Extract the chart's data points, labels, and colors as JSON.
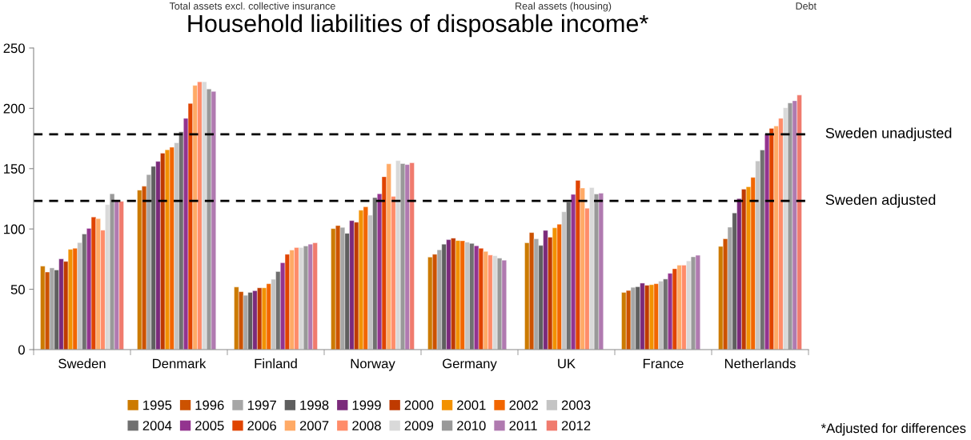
{
  "chart_data": {
    "type": "bar",
    "title": "Household liabilities of disposable income*",
    "categories": [
      "Sweden",
      "Denmark",
      "Finland",
      "Norway",
      "Germany",
      "UK",
      "France",
      "Netherlands"
    ],
    "ylim": [
      0,
      250
    ],
    "yticks": [
      0,
      50,
      100,
      150,
      200,
      250
    ],
    "grid": false,
    "legend": "bottom",
    "series": [
      {
        "name": "1995",
        "color": "#cc7a00",
        "values": [
          69.2,
          132.2,
          51.9,
          100.3,
          76.7,
          88.5,
          47.4,
          85.5
        ]
      },
      {
        "name": "1996",
        "color": "#cc5200",
        "values": [
          64.3,
          135.4,
          48,
          102.8,
          79,
          97,
          49,
          91.9
        ]
      },
      {
        "name": "1997",
        "color": "#a6a6a6",
        "values": [
          67.7,
          145,
          45,
          101.3,
          82.7,
          91.9,
          51.6,
          101.5
        ]
      },
      {
        "name": "1998",
        "color": "#5f5f5f",
        "values": [
          66,
          151.9,
          47.4,
          96.4,
          87.4,
          86.3,
          52.1,
          113.3
        ]
      },
      {
        "name": "1999",
        "color": "#7b2a7b",
        "values": [
          75.2,
          156,
          48.8,
          106.9,
          91.1,
          98.8,
          55.1,
          125.1
        ]
      },
      {
        "name": "2000",
        "color": "#bf3a00",
        "values": [
          73.1,
          162.8,
          51.2,
          105.6,
          92.4,
          93.2,
          53.3,
          133
        ]
      },
      {
        "name": "2001",
        "color": "#f29100",
        "values": [
          83.1,
          165.6,
          51.2,
          115.5,
          90.4,
          100.9,
          53.8,
          135
        ]
      },
      {
        "name": "2002",
        "color": "#f26600",
        "values": [
          84,
          167.7,
          54.6,
          118.3,
          90.2,
          103.9,
          54.6,
          142.7
        ]
      },
      {
        "name": "2003",
        "color": "#c4c4c4",
        "values": [
          88.7,
          171.4,
          58.3,
          111.4,
          89.1,
          114.2,
          56.7,
          156.4
        ]
      },
      {
        "name": "2004",
        "color": "#707070",
        "values": [
          95.8,
          180.6,
          64.7,
          126,
          88,
          122.3,
          58.5,
          165.4
        ]
      },
      {
        "name": "2005",
        "color": "#93348f",
        "values": [
          100.5,
          191.7,
          72,
          129.2,
          86.1,
          128.7,
          63.2,
          178.5
        ]
      },
      {
        "name": "2006",
        "color": "#e04400",
        "values": [
          109.9,
          204,
          79,
          143.3,
          84,
          140.3,
          67,
          183.4
        ]
      },
      {
        "name": "2007",
        "color": "#ffaa66",
        "values": [
          108.6,
          219,
          82.5,
          154,
          81.4,
          133.9,
          70,
          185.3
        ]
      },
      {
        "name": "2008",
        "color": "#ff8c69",
        "values": [
          99,
          222,
          84.6,
          127,
          78.4,
          117.2,
          70,
          191.7
        ]
      },
      {
        "name": "2009",
        "color": "#d9d9d9",
        "values": [
          120.2,
          222,
          84.6,
          156.6,
          77.8,
          134.3,
          73.5,
          200.5
        ]
      },
      {
        "name": "2010",
        "color": "#999999",
        "values": [
          129.2,
          216,
          85.9,
          154.2,
          75.8,
          129,
          76.9,
          204.4
        ]
      },
      {
        "name": "2011",
        "color": "#b07ab0",
        "values": [
          122.9,
          214,
          87.4,
          153.4,
          74.1,
          129.6,
          78.2,
          206.3
        ]
      },
      {
        "name": "2012",
        "color": "#f07b6e",
        "values": [
          122.9,
          null,
          88.5,
          154.9,
          null,
          null,
          null,
          211
        ]
      }
    ],
    "ref_lines": [
      {
        "axis": "y",
        "value": 178.5,
        "label": "Sweden unadjusted",
        "color": "#000000",
        "line_style": "dashed"
      },
      {
        "axis": "y",
        "value": 123.2,
        "label": "Sweden adjusted",
        "color": "#000000",
        "line_style": "dashed"
      }
    ],
    "annotations": [
      "Total assets excl. collective insurance",
      "Real assets (housing)",
      "Debt",
      "*Adjusted for differences"
    ]
  }
}
